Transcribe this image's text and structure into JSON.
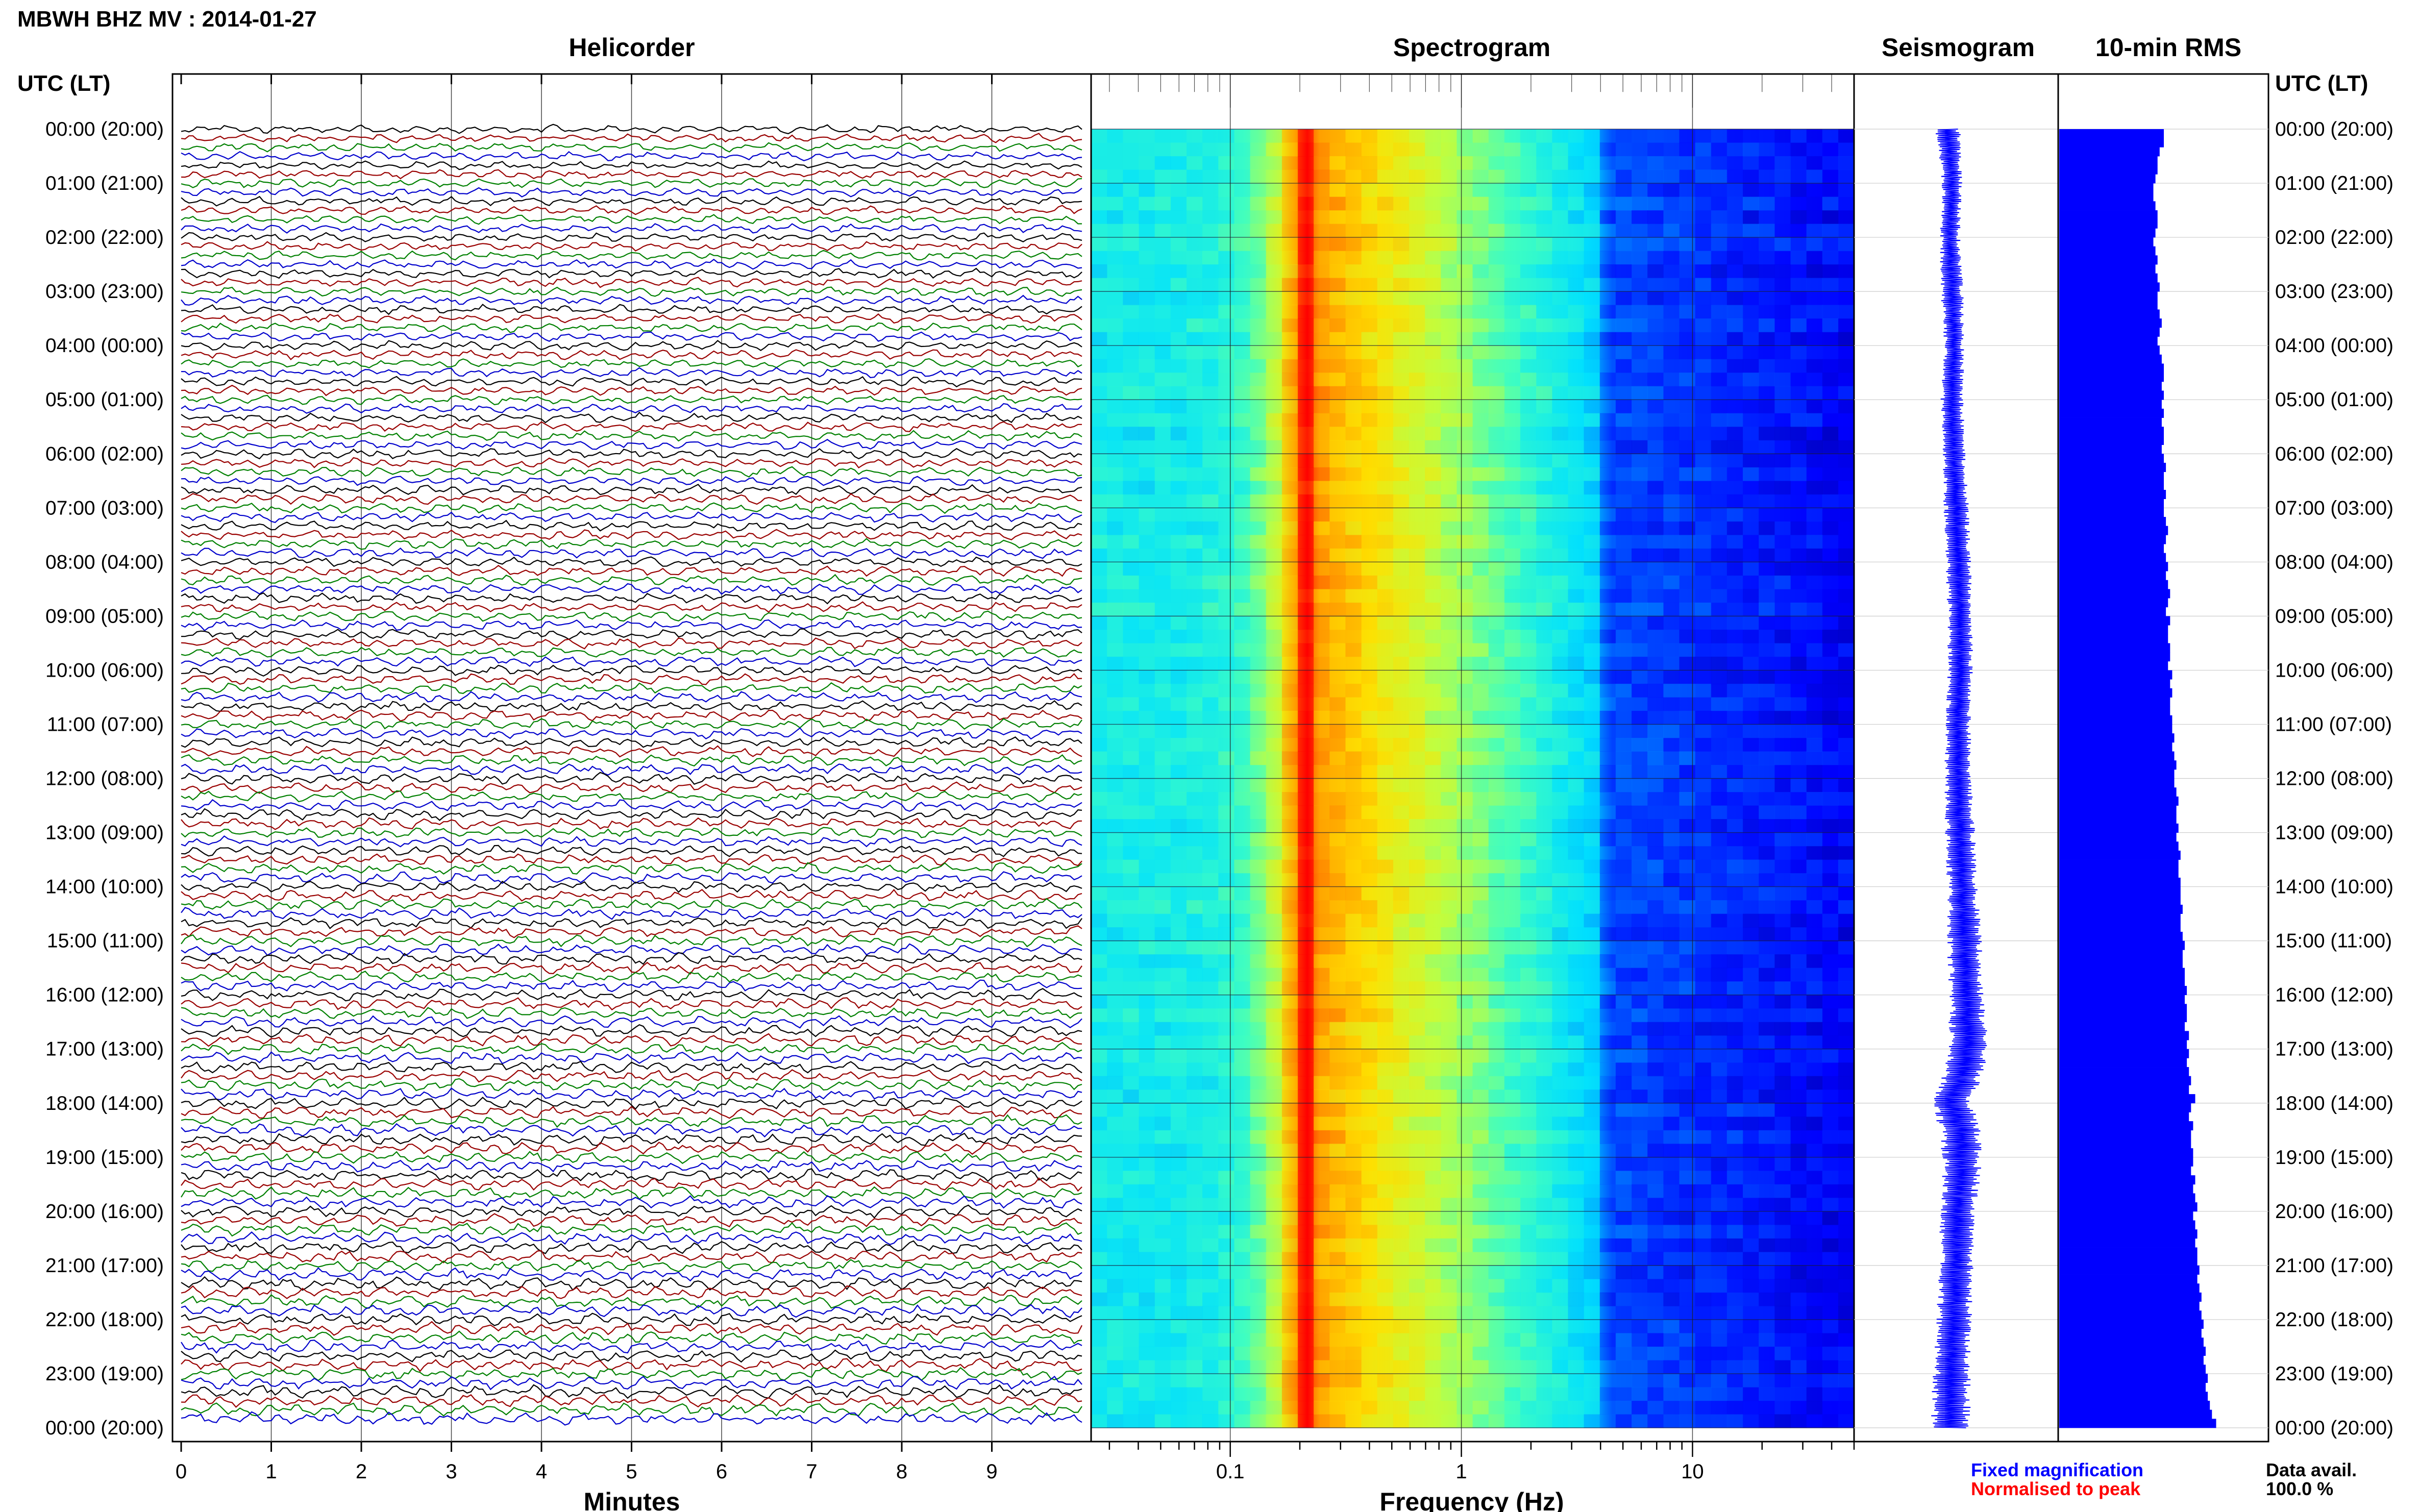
{
  "header": {
    "title": "MBWH BHZ MV : 2014-01-27",
    "left_axis_header": "UTC (LT)",
    "right_axis_header": "UTC (LT)"
  },
  "panels": {
    "helicorder": "Helicorder",
    "spectrogram": "Spectrogram",
    "seismogram": "Seismogram",
    "rms": "10-min RMS"
  },
  "legend": {
    "fixed": "Fixed magnification",
    "normalised": "Normalised to peak",
    "data_avail_label": "Data avail.",
    "data_avail_value": "100.0 %"
  },
  "colors": {
    "trace_cycle": [
      "#000000",
      "#990000",
      "#008000",
      "#0000cc"
    ],
    "seismogram": "#0000ff",
    "rms": "#0000ff",
    "legend_fixed": "#0000ff",
    "legend_normalised": "#ff0000"
  },
  "chart_data": [
    {
      "type": "line",
      "panel": "helicorder",
      "xlabel": "Minutes",
      "x_ticks": [
        "0",
        "1",
        "2",
        "3",
        "4",
        "5",
        "6",
        "7",
        "8",
        "9"
      ],
      "xlim": [
        0,
        10
      ],
      "rows": 144,
      "row_minutes": 10,
      "hour_labels": [
        "00:00 (20:00)",
        "01:00 (21:00)",
        "02:00 (22:00)",
        "03:00 (23:00)",
        "04:00 (00:00)",
        "05:00 (01:00)",
        "06:00 (02:00)",
        "07:00 (03:00)",
        "08:00 (04:00)",
        "09:00 (05:00)",
        "10:00 (06:00)",
        "11:00 (07:00)",
        "12:00 (08:00)",
        "13:00 (09:00)",
        "14:00 (10:00)",
        "15:00 (11:00)",
        "16:00 (12:00)",
        "17:00 (13:00)",
        "18:00 (14:00)",
        "19:00 (15:00)",
        "20:00 (16:00)",
        "21:00 (17:00)",
        "22:00 (18:00)",
        "23:00 (19:00)",
        "00:00 (20:00)"
      ]
    },
    {
      "type": "heatmap",
      "panel": "spectrogram",
      "xlabel": "Frequency (Hz)",
      "x_scale": "log",
      "xlim": [
        0.025,
        50
      ],
      "x_ticks": [
        {
          "value": 0.1,
          "label": "0.1"
        },
        {
          "value": 1,
          "label": "1"
        },
        {
          "value": 10,
          "label": "10"
        }
      ],
      "peak_frequency_hz": 0.22,
      "colormap": [
        "#00007f",
        "#0000ff",
        "#0080ff",
        "#00e0ff",
        "#40ffc0",
        "#c0ff40",
        "#ffe000",
        "#ff8000",
        "#ff0000"
      ]
    },
    {
      "type": "line",
      "panel": "seismogram",
      "series": [
        {
          "y_hours": [
            0,
            1,
            2,
            3,
            4,
            5,
            6,
            7,
            8,
            9,
            10,
            11,
            12,
            13,
            14,
            15,
            16,
            17,
            17.5,
            18,
            18.5,
            19,
            20,
            21,
            22,
            23,
            24
          ],
          "center": [
            0.46,
            0.48,
            0.47,
            0.48,
            0.49,
            0.48,
            0.49,
            0.5,
            0.51,
            0.52,
            0.52,
            0.51,
            0.51,
            0.52,
            0.53,
            0.54,
            0.55,
            0.56,
            0.53,
            0.48,
            0.52,
            0.53,
            0.51,
            0.5,
            0.49,
            0.48,
            0.47
          ],
          "halfwidth": [
            0.05,
            0.04,
            0.04,
            0.045,
            0.04,
            0.045,
            0.045,
            0.05,
            0.05,
            0.05,
            0.05,
            0.05,
            0.055,
            0.06,
            0.06,
            0.07,
            0.07,
            0.08,
            0.08,
            0.08,
            0.085,
            0.08,
            0.07,
            0.07,
            0.07,
            0.075,
            0.08
          ]
        }
      ]
    },
    {
      "type": "bar",
      "panel": "rms",
      "orientation": "horizontal",
      "bins": 144,
      "xlim": [
        0,
        1
      ],
      "values": [
        0.5,
        0.5,
        0.48,
        0.47,
        0.47,
        0.46,
        0.45,
        0.45,
        0.46,
        0.47,
        0.47,
        0.46,
        0.45,
        0.46,
        0.47,
        0.46,
        0.47,
        0.48,
        0.47,
        0.47,
        0.48,
        0.49,
        0.48,
        0.47,
        0.48,
        0.49,
        0.5,
        0.5,
        0.49,
        0.5,
        0.49,
        0.5,
        0.49,
        0.5,
        0.5,
        0.49,
        0.5,
        0.51,
        0.5,
        0.5,
        0.51,
        0.5,
        0.5,
        0.51,
        0.52,
        0.51,
        0.5,
        0.51,
        0.52,
        0.51,
        0.52,
        0.53,
        0.52,
        0.51,
        0.53,
        0.52,
        0.52,
        0.53,
        0.53,
        0.52,
        0.54,
        0.53,
        0.54,
        0.53,
        0.53,
        0.54,
        0.54,
        0.55,
        0.54,
        0.55,
        0.56,
        0.55,
        0.55,
        0.56,
        0.57,
        0.56,
        0.56,
        0.57,
        0.56,
        0.57,
        0.58,
        0.57,
        0.57,
        0.58,
        0.58,
        0.58,
        0.59,
        0.58,
        0.58,
        0.59,
        0.6,
        0.59,
        0.59,
        0.6,
        0.6,
        0.61,
        0.6,
        0.61,
        0.61,
        0.6,
        0.62,
        0.61,
        0.62,
        0.61,
        0.62,
        0.63,
        0.62,
        0.65,
        0.63,
        0.62,
        0.64,
        0.63,
        0.63,
        0.64,
        0.64,
        0.63,
        0.65,
        0.64,
        0.65,
        0.66,
        0.64,
        0.65,
        0.66,
        0.65,
        0.66,
        0.66,
        0.67,
        0.66,
        0.67,
        0.68,
        0.67,
        0.68,
        0.69,
        0.68,
        0.69,
        0.7,
        0.69,
        0.7,
        0.71,
        0.7,
        0.71,
        0.72,
        0.73,
        0.75
      ]
    }
  ]
}
